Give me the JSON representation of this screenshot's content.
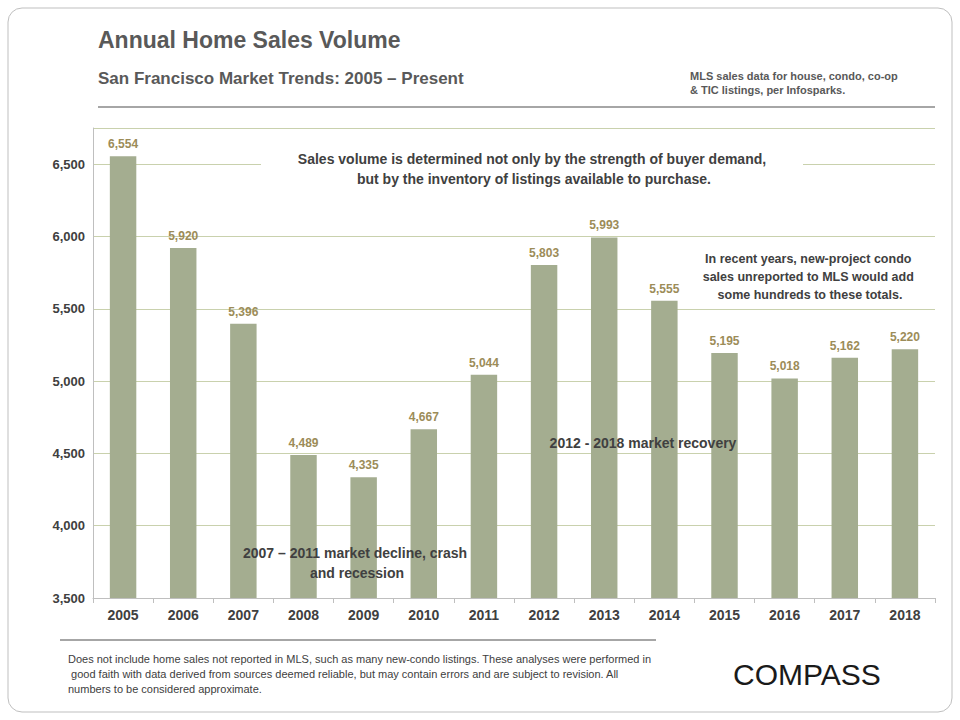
{
  "chart_data": {
    "type": "bar",
    "title": "Annual Home Sales Volume",
    "subtitle": "San Francisco Market Trends: 2005 – Present",
    "source": "MLS sales data for house, condo, co-op & TIC listings, per Infosparks.",
    "annotations": [
      "Sales volume is determined not only by the strength of buyer demand, but by the inventory of listings available to purchase.",
      "In recent years, new-project condo sales unreported to MLS would add some hundreds to these totals.",
      "2012 - 2018 market recovery",
      "2007 – 2011 market decline, crash and recession"
    ],
    "footnote": "Does not include home sales not reported in MLS, such as many new-condo listings. These analyses were performed in good faith with data derived from sources deemed reliable, but may contain errors and are subject to revision. All numbers to be considered approximate.",
    "logo": "COMPASS",
    "categories": [
      "2005",
      "2006",
      "2007",
      "2008",
      "2009",
      "2010",
      "2011",
      "2012",
      "2013",
      "2014",
      "2015",
      "2016",
      "2017",
      "2018"
    ],
    "values": [
      6554,
      5920,
      5396,
      4489,
      4335,
      4667,
      5044,
      5803,
      5993,
      5555,
      5195,
      5018,
      5162,
      5220
    ],
    "value_labels": [
      "6,554",
      "5,920",
      "5,396",
      "4,489",
      "4,335",
      "4,667",
      "5,044",
      "5,803",
      "5,993",
      "5,555",
      "5,195",
      "5,018",
      "5,162",
      "5,220"
    ],
    "color": "#a4ad90",
    "ylim": [
      3500,
      6750
    ],
    "yticks": [
      {
        "value": 3500,
        "label": "3,500"
      },
      {
        "value": 4000,
        "label": "4,000"
      },
      {
        "value": 4500,
        "label": "4,500"
      },
      {
        "value": 5000,
        "label": "5,000"
      },
      {
        "value": 5500,
        "label": "5,500"
      },
      {
        "value": 6000,
        "label": "6,000"
      },
      {
        "value": 6500,
        "label": "6,500"
      }
    ],
    "grid": true,
    "data_labels": true
  }
}
